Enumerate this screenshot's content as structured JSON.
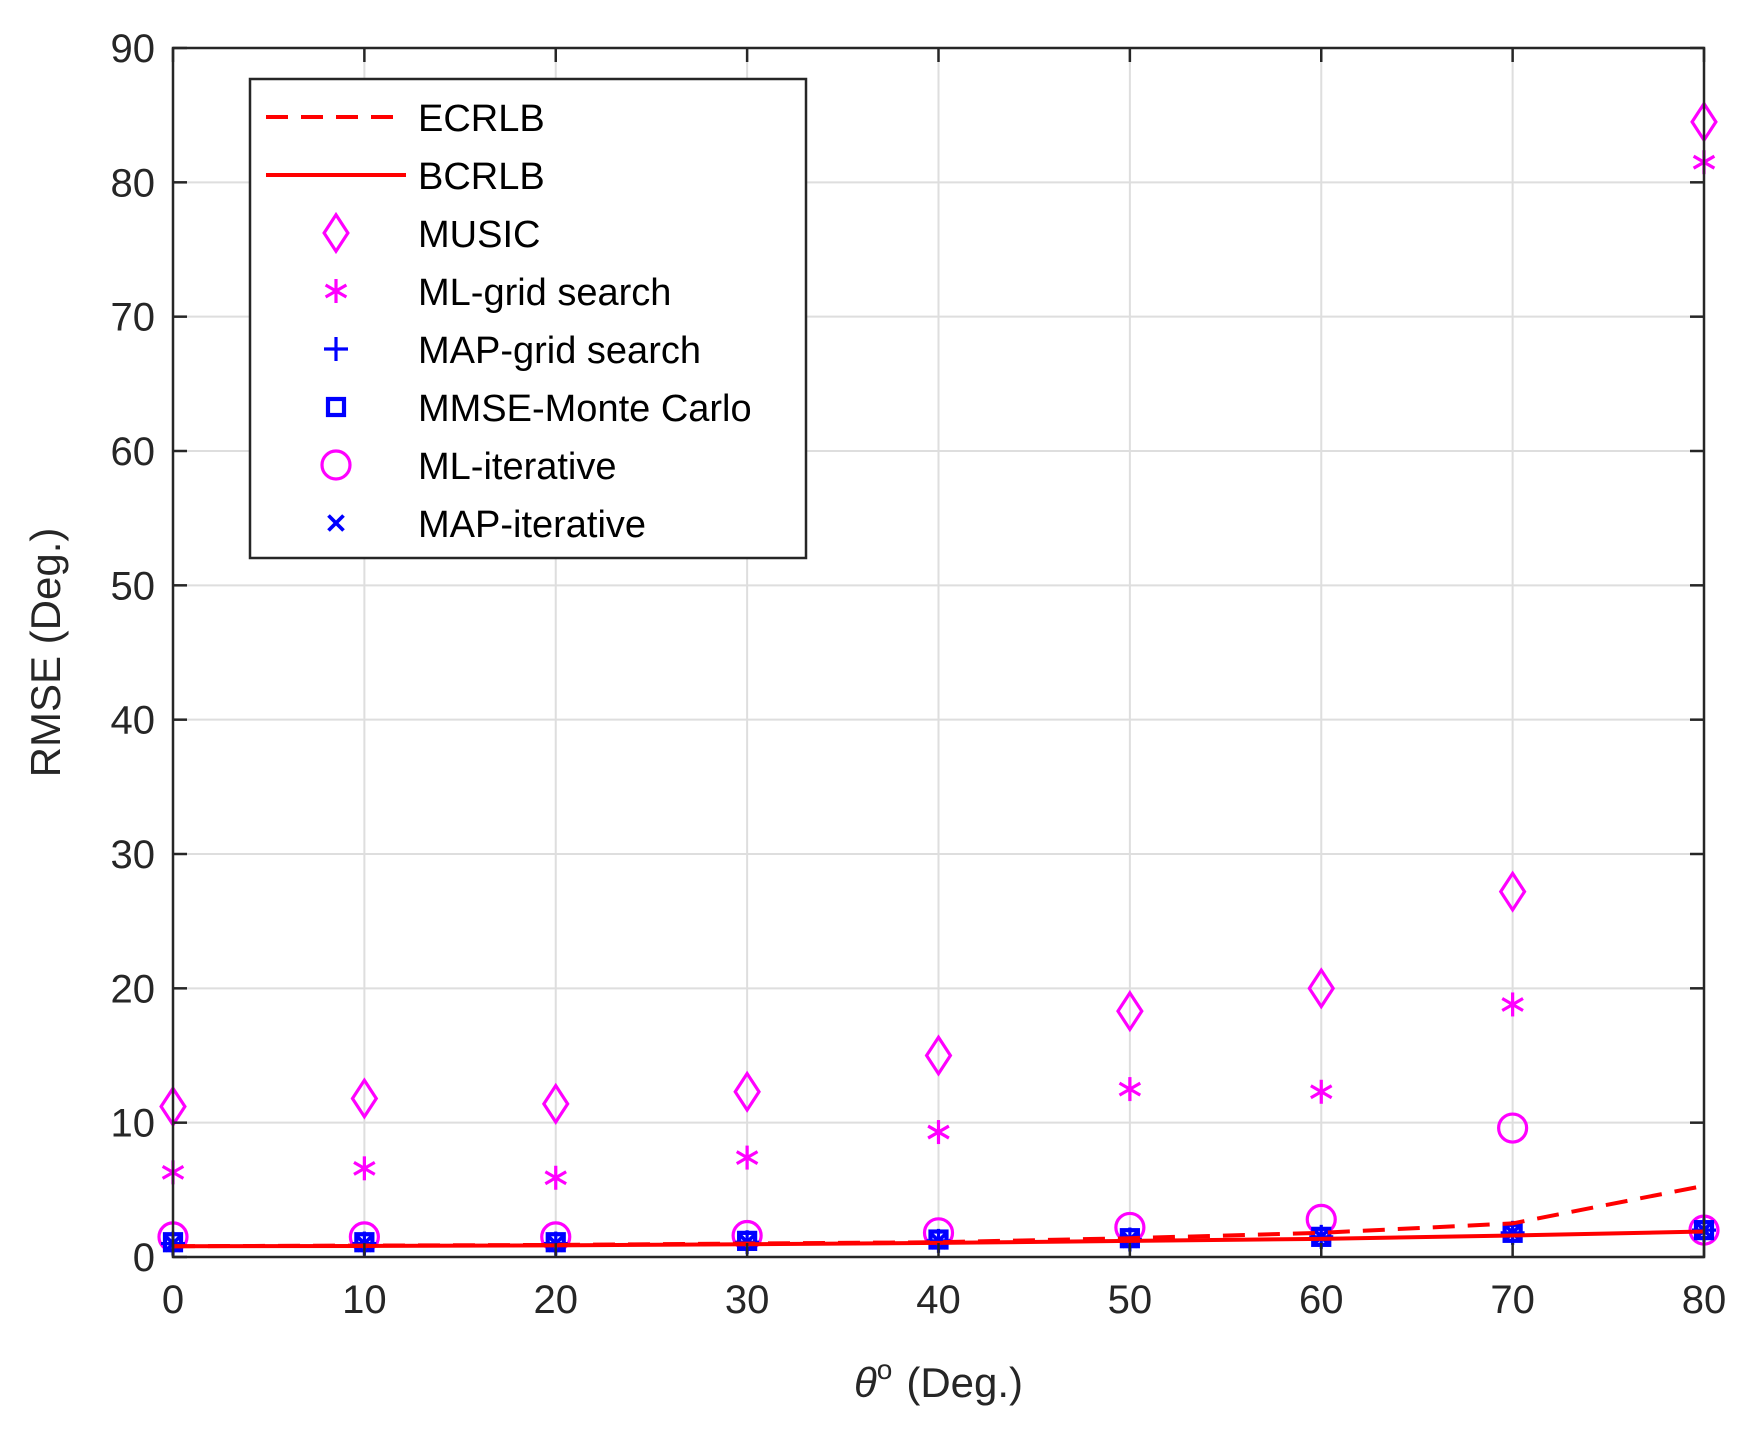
{
  "chart_data": {
    "type": "scatter",
    "xlabel_symbol": "θ",
    "xlabel_superscript": "o",
    "xlabel_unit": "(Deg.)",
    "ylabel": "RMSE (Deg.)",
    "xlim": [
      0,
      80
    ],
    "ylim": [
      0,
      90
    ],
    "xticks": [
      0,
      10,
      20,
      30,
      40,
      50,
      60,
      70,
      80
    ],
    "yticks": [
      0,
      10,
      20,
      30,
      40,
      50,
      60,
      70,
      80,
      90
    ],
    "grid": true,
    "legend_position": "top-left",
    "x": [
      0,
      10,
      20,
      30,
      40,
      50,
      60,
      70,
      80
    ],
    "series": [
      {
        "name": "ECRLB",
        "style": "dashed-line",
        "color": "#ff0000",
        "values": [
          0.8,
          0.85,
          0.9,
          1.0,
          1.1,
          1.4,
          1.8,
          2.5,
          5.3
        ]
      },
      {
        "name": "BCRLB",
        "style": "solid-line",
        "color": "#ff0000",
        "values": [
          0.8,
          0.82,
          0.87,
          0.95,
          1.05,
          1.2,
          1.35,
          1.6,
          1.9
        ]
      },
      {
        "name": "MUSIC",
        "style": "diamond",
        "color": "#ff00ff",
        "values": [
          11.2,
          11.8,
          11.4,
          12.3,
          15.0,
          18.3,
          20.0,
          27.2,
          84.5
        ]
      },
      {
        "name": "ML-grid search",
        "style": "asterisk",
        "color": "#ff00ff",
        "values": [
          6.3,
          6.6,
          5.9,
          7.4,
          9.3,
          12.5,
          12.3,
          18.8,
          81.5
        ]
      },
      {
        "name": "MAP-grid search",
        "style": "plus",
        "color": "#0000ff",
        "values": [
          1.0,
          1.0,
          1.0,
          1.1,
          1.2,
          1.3,
          1.5,
          1.8,
          2.0
        ]
      },
      {
        "name": "MMSE-Monte Carlo",
        "style": "square",
        "color": "#0000ff",
        "values": [
          1.1,
          1.1,
          1.1,
          1.2,
          1.3,
          1.4,
          1.5,
          1.8,
          2.0
        ]
      },
      {
        "name": "ML-iterative",
        "style": "circle",
        "color": "#ff00ff",
        "values": [
          1.5,
          1.5,
          1.5,
          1.6,
          1.8,
          2.2,
          2.8,
          9.6,
          2.0
        ]
      },
      {
        "name": "MAP-iterative",
        "style": "x",
        "color": "#0000ff",
        "values": [
          1.0,
          1.0,
          1.0,
          1.1,
          1.2,
          1.3,
          1.5,
          1.8,
          2.0
        ]
      }
    ]
  }
}
